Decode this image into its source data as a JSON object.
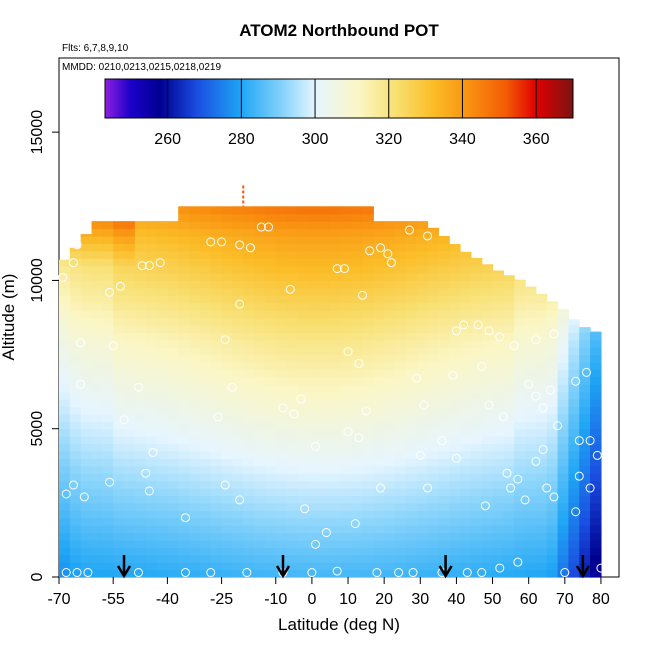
{
  "chart_data": {
    "type": "heatmap",
    "title": "ATOM2 Northbound POT",
    "subtitle_flights": "Flts: 6,7,8,9,10",
    "subtitle_dates": "MMDD: 0210,0213,0215,0218,0219",
    "xlabel": "Latitude (deg N)",
    "ylabel": "Altitude (m)",
    "xlim": [
      -70,
      85
    ],
    "ylim": [
      0,
      17500
    ],
    "x_ticks": [
      -70,
      -55,
      -40,
      -25,
      -10,
      0,
      10,
      20,
      30,
      40,
      50,
      60,
      70,
      80
    ],
    "y_ticks": [
      0,
      5000,
      10000,
      15000
    ],
    "grid": false,
    "colorbar": {
      "placement": "top-inside",
      "range": [
        243,
        370
      ],
      "tick_labels": [
        260,
        280,
        300,
        320,
        340,
        360
      ],
      "stops": [
        {
          "value": 243,
          "color": "#8f1fe0"
        },
        {
          "value": 250,
          "color": "#1b00c8"
        },
        {
          "value": 258,
          "color": "#000090"
        },
        {
          "value": 268,
          "color": "#1a4de0"
        },
        {
          "value": 280,
          "color": "#1fa6f5"
        },
        {
          "value": 292,
          "color": "#8ed6fb"
        },
        {
          "value": 300,
          "color": "#e6f5ff"
        },
        {
          "value": 312,
          "color": "#fbf6c4"
        },
        {
          "value": 322,
          "color": "#f8e072"
        },
        {
          "value": 332,
          "color": "#fbbd28"
        },
        {
          "value": 342,
          "color": "#f99010"
        },
        {
          "value": 352,
          "color": "#f25a05"
        },
        {
          "value": 360,
          "color": "#e00000"
        },
        {
          "value": 370,
          "color": "#7a1412"
        }
      ]
    },
    "domain": {
      "x_range": [
        -70,
        80
      ],
      "top_altitude_by_latitude": [
        [
          -70,
          10500
        ],
        [
          -64,
          11300
        ],
        [
          -60,
          12000
        ],
        [
          -38,
          12000
        ],
        [
          -37,
          12500
        ],
        [
          -20,
          12500
        ],
        [
          5,
          12500
        ],
        [
          16,
          12500
        ],
        [
          17,
          12000
        ],
        [
          31,
          12000
        ],
        [
          42,
          11000
        ],
        [
          52,
          10300
        ],
        [
          58,
          10000
        ],
        [
          64,
          9500
        ],
        [
          70,
          9000
        ],
        [
          74,
          8500
        ],
        [
          80,
          8200
        ]
      ],
      "sampled_cells": {
        "x_step_deg": 3,
        "y_step_m": 250
      }
    },
    "field_model": {
      "description": "Potential temperature (K) by latitude and altitude",
      "surface_warm_anomaly_center_deg": 5,
      "surface_warm_anomaly_width_deg": 48
    },
    "sample_points": [
      {
        "x": -69,
        "y": 10100
      },
      {
        "x": -66,
        "y": 10600
      },
      {
        "x": -65,
        "y": 11200
      },
      {
        "x": -67,
        "y": 11700
      },
      {
        "x": -64,
        "y": 7900
      },
      {
        "x": -64,
        "y": 6500
      },
      {
        "x": -68,
        "y": 2800
      },
      {
        "x": -66,
        "y": 3100
      },
      {
        "x": -63,
        "y": 2700
      },
      {
        "x": -56,
        "y": 9600
      },
      {
        "x": -53,
        "y": 9800
      },
      {
        "x": -47,
        "y": 10500
      },
      {
        "x": -45,
        "y": 10500
      },
      {
        "x": -42,
        "y": 10600
      },
      {
        "x": -55,
        "y": 7800
      },
      {
        "x": -48,
        "y": 6400
      },
      {
        "x": -52,
        "y": 5300
      },
      {
        "x": -44,
        "y": 4200
      },
      {
        "x": -56,
        "y": 3200
      },
      {
        "x": -46,
        "y": 3500
      },
      {
        "x": -45,
        "y": 2900
      },
      {
        "x": -28,
        "y": 11300
      },
      {
        "x": -25,
        "y": 11300
      },
      {
        "x": -20,
        "y": 11200
      },
      {
        "x": -17,
        "y": 11100
      },
      {
        "x": -24,
        "y": 8000
      },
      {
        "x": -20,
        "y": 9200
      },
      {
        "x": -22,
        "y": 6400
      },
      {
        "x": -26,
        "y": 5400
      },
      {
        "x": -20,
        "y": 2600
      },
      {
        "x": -35,
        "y": 2000
      },
      {
        "x": -24,
        "y": 3100
      },
      {
        "x": -14,
        "y": 11800
      },
      {
        "x": -12,
        "y": 11800
      },
      {
        "x": -6,
        "y": 9700
      },
      {
        "x": -8,
        "y": 5700
      },
      {
        "x": -5,
        "y": 5500
      },
      {
        "x": -3,
        "y": 6000
      },
      {
        "x": 1,
        "y": 4400
      },
      {
        "x": -2,
        "y": 2300
      },
      {
        "x": 1,
        "y": 1100
      },
      {
        "x": 4,
        "y": 1500
      },
      {
        "x": 7,
        "y": 10400
      },
      {
        "x": 9,
        "y": 10400
      },
      {
        "x": 14,
        "y": 9500
      },
      {
        "x": 10,
        "y": 7600
      },
      {
        "x": 13,
        "y": 7200
      },
      {
        "x": 15,
        "y": 5600
      },
      {
        "x": 10,
        "y": 4900
      },
      {
        "x": 13,
        "y": 4700
      },
      {
        "x": 19,
        "y": 3000
      },
      {
        "x": 12,
        "y": 1800
      },
      {
        "x": 16,
        "y": 11000
      },
      {
        "x": 21,
        "y": 10900
      },
      {
        "x": 22,
        "y": 10600
      },
      {
        "x": 19,
        "y": 11100
      },
      {
        "x": 27,
        "y": 11700
      },
      {
        "x": 32,
        "y": 11500
      },
      {
        "x": 37,
        "y": 11800
      },
      {
        "x": 29,
        "y": 6700
      },
      {
        "x": 31,
        "y": 5800
      },
      {
        "x": 30,
        "y": 4100
      },
      {
        "x": 32,
        "y": 3000
      },
      {
        "x": 36,
        "y": 4600
      },
      {
        "x": 40,
        "y": 8300
      },
      {
        "x": 42,
        "y": 8500
      },
      {
        "x": 46,
        "y": 8500
      },
      {
        "x": 49,
        "y": 8300
      },
      {
        "x": 52,
        "y": 8100
      },
      {
        "x": 39,
        "y": 6800
      },
      {
        "x": 40,
        "y": 4000
      },
      {
        "x": 47,
        "y": 7100
      },
      {
        "x": 49,
        "y": 5800
      },
      {
        "x": 53,
        "y": 5400
      },
      {
        "x": 54,
        "y": 3500
      },
      {
        "x": 57,
        "y": 3300
      },
      {
        "x": 55,
        "y": 3000
      },
      {
        "x": 48,
        "y": 2400
      },
      {
        "x": 60,
        "y": 6500
      },
      {
        "x": 62,
        "y": 6100
      },
      {
        "x": 64,
        "y": 5700
      },
      {
        "x": 66,
        "y": 6300
      },
      {
        "x": 68,
        "y": 5100
      },
      {
        "x": 64,
        "y": 4300
      },
      {
        "x": 62,
        "y": 3900
      },
      {
        "x": 65,
        "y": 3000
      },
      {
        "x": 67,
        "y": 2700
      },
      {
        "x": 59,
        "y": 2600
      },
      {
        "x": 73,
        "y": 6600
      },
      {
        "x": 76,
        "y": 6900
      },
      {
        "x": 74,
        "y": 4600
      },
      {
        "x": 77,
        "y": 4600
      },
      {
        "x": 79,
        "y": 4100
      },
      {
        "x": 74,
        "y": 3400
      },
      {
        "x": 77,
        "y": 3000
      },
      {
        "x": 73,
        "y": 2200
      },
      {
        "x": 62,
        "y": 8000
      },
      {
        "x": 67,
        "y": 8200
      },
      {
        "x": 56,
        "y": 7800
      },
      {
        "x": -68,
        "y": 150
      },
      {
        "x": -65,
        "y": 150
      },
      {
        "x": -62,
        "y": 150
      },
      {
        "x": -48,
        "y": 150
      },
      {
        "x": -35,
        "y": 150
      },
      {
        "x": -28,
        "y": 150
      },
      {
        "x": -18,
        "y": 150
      },
      {
        "x": -8,
        "y": 150
      },
      {
        "x": 0,
        "y": 150
      },
      {
        "x": 7,
        "y": 200
      },
      {
        "x": 18,
        "y": 150
      },
      {
        "x": 24,
        "y": 150
      },
      {
        "x": 28,
        "y": 150
      },
      {
        "x": 36,
        "y": 150
      },
      {
        "x": 43,
        "y": 150
      },
      {
        "x": 47,
        "y": 150
      },
      {
        "x": 52,
        "y": 300
      },
      {
        "x": 57,
        "y": 500
      },
      {
        "x": 70,
        "y": 150
      },
      {
        "x": 80,
        "y": 300
      }
    ],
    "surface_arrows_latitude": [
      -52,
      -8,
      37,
      75
    ],
    "top_marker": {
      "latitude": -19,
      "altitude_range": [
        12500,
        13200
      ]
    }
  }
}
